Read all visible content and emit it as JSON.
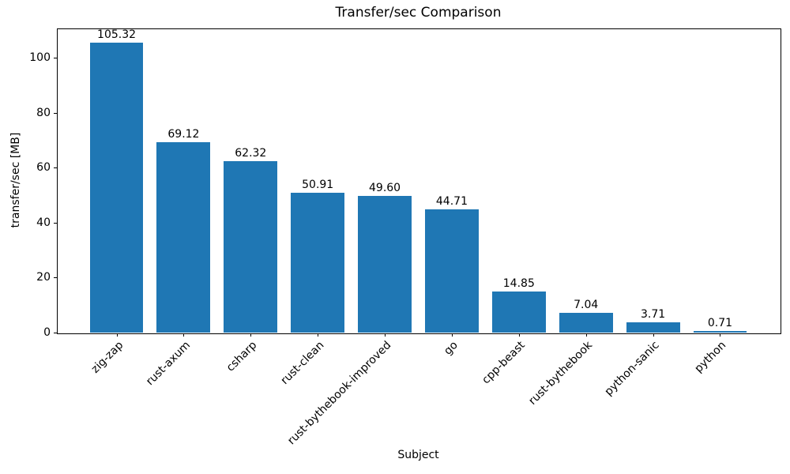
{
  "chart_data": {
    "type": "bar",
    "title": "Transfer/sec Comparison",
    "xlabel": "Subject",
    "ylabel": "transfer/sec [MB]",
    "categories": [
      "zig-zap",
      "rust-axum",
      "csharp",
      "rust-clean",
      "rust-bythebook-improved",
      "go",
      "cpp-beast",
      "rust-bythebook",
      "python-sanic",
      "python"
    ],
    "values": [
      105.32,
      69.12,
      62.32,
      50.91,
      49.6,
      44.71,
      14.85,
      7.04,
      3.71,
      0.71
    ],
    "value_labels": [
      "105.32",
      "69.12",
      "62.32",
      "50.91",
      "49.60",
      "44.71",
      "14.85",
      "7.04",
      "3.71",
      "0.71"
    ],
    "yticks": [
      0,
      20,
      40,
      60,
      80,
      100
    ],
    "ylim": [
      0,
      110.6
    ],
    "xlim": [
      -0.89,
      9.89
    ],
    "bar_width": 0.8,
    "bar_color": "#1f77b4",
    "grid": false,
    "legend": null,
    "x_tick_rotation_deg": 45
  }
}
